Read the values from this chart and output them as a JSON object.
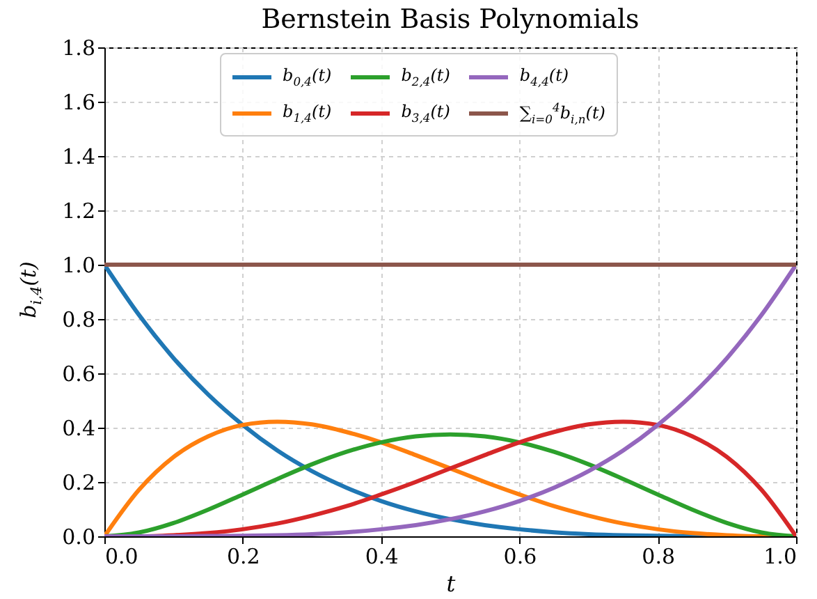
{
  "chart_data": {
    "type": "line",
    "title": "Bernstein Basis Polynomials",
    "xlabel": "t",
    "ylabel": "b$_{i,4}$(t)",
    "x": [
      0,
      0.05,
      0.1,
      0.15,
      0.2,
      0.25,
      0.3,
      0.35,
      0.4,
      0.45,
      0.5,
      0.55,
      0.6,
      0.65,
      0.7,
      0.75,
      0.8,
      0.85,
      0.9,
      0.95,
      1
    ],
    "series": [
      {
        "name": "b$_{0,4}$(t)",
        "color": "#1f77b4",
        "values": [
          1,
          0.815,
          0.656,
          0.522,
          0.41,
          0.316,
          0.24,
          0.179,
          0.13,
          0.092,
          0.063,
          0.041,
          0.026,
          0.015,
          0.008,
          0.004,
          0.002,
          0.001,
          0.0,
          null,
          null
        ]
      },
      {
        "name": "b$_{1,4}$(t)",
        "color": "#ff7f0e",
        "values": [
          0,
          0.171,
          0.292,
          0.368,
          0.41,
          0.422,
          0.412,
          0.384,
          0.346,
          0.299,
          0.25,
          0.2,
          0.154,
          0.111,
          0.076,
          0.047,
          0.026,
          0.012,
          0.004,
          0.0,
          0
        ]
      },
      {
        "name": "b$_{2,4}$(t)",
        "color": "#2ca02c",
        "values": [
          0,
          0.014,
          0.049,
          0.098,
          0.154,
          0.211,
          0.265,
          0.311,
          0.346,
          0.368,
          0.375,
          0.368,
          0.346,
          0.311,
          0.265,
          0.211,
          0.154,
          0.098,
          0.049,
          0.014,
          0
        ]
      },
      {
        "name": "b$_{3,4}$(t)",
        "color": "#d62728",
        "values": [
          0,
          0.0,
          0.004,
          0.012,
          0.026,
          0.047,
          0.076,
          0.111,
          0.154,
          0.2,
          0.25,
          0.299,
          0.346,
          0.384,
          0.412,
          0.422,
          0.41,
          0.368,
          0.292,
          0.171,
          0
        ]
      },
      {
        "name": "b$_{4,4}$(t)",
        "color": "#9467bd",
        "values": [
          0,
          0.0,
          0.0,
          0.001,
          0.002,
          0.004,
          0.008,
          0.015,
          0.026,
          0.041,
          0.063,
          0.092,
          0.13,
          0.179,
          0.24,
          0.316,
          0.41,
          0.522,
          0.656,
          0.815,
          1
        ]
      },
      {
        "name": "∑$_{i=0}$$^{4}$b$_{i,n}$(t)",
        "color": "#8c564b",
        "x": [
          0,
          1
        ],
        "values": [
          1,
          1
        ]
      }
    ],
    "xlim": [
      0,
      1
    ],
    "xticks": [
      {
        "value": 0,
        "label": "0.0"
      },
      {
        "value": 0.2,
        "label": "0.2"
      },
      {
        "value": 0.4,
        "label": "0.4"
      },
      {
        "value": 0.6,
        "label": "0.6"
      },
      {
        "value": 0.8,
        "label": "0.8"
      },
      {
        "value": 1,
        "label": "1.0"
      }
    ],
    "ylim": [
      0,
      1.8
    ],
    "yticks": [
      {
        "value": 0,
        "label": "0.0"
      },
      {
        "value": 0.2,
        "label": "0.2"
      },
      {
        "value": 0.4,
        "label": "0.4"
      },
      {
        "value": 0.6,
        "label": "0.6"
      },
      {
        "value": 0.8,
        "label": "0.8"
      },
      {
        "value": 1,
        "label": "1.0"
      },
      {
        "value": 1.2,
        "label": "1.2"
      },
      {
        "value": 1.4,
        "label": "1.4"
      },
      {
        "value": 1.6,
        "label": "1.6"
      },
      {
        "value": 1.8,
        "label": "1.8"
      }
    ],
    "grid": true,
    "legend": "top",
    "marker": "none",
    "line_style": "solid"
  }
}
